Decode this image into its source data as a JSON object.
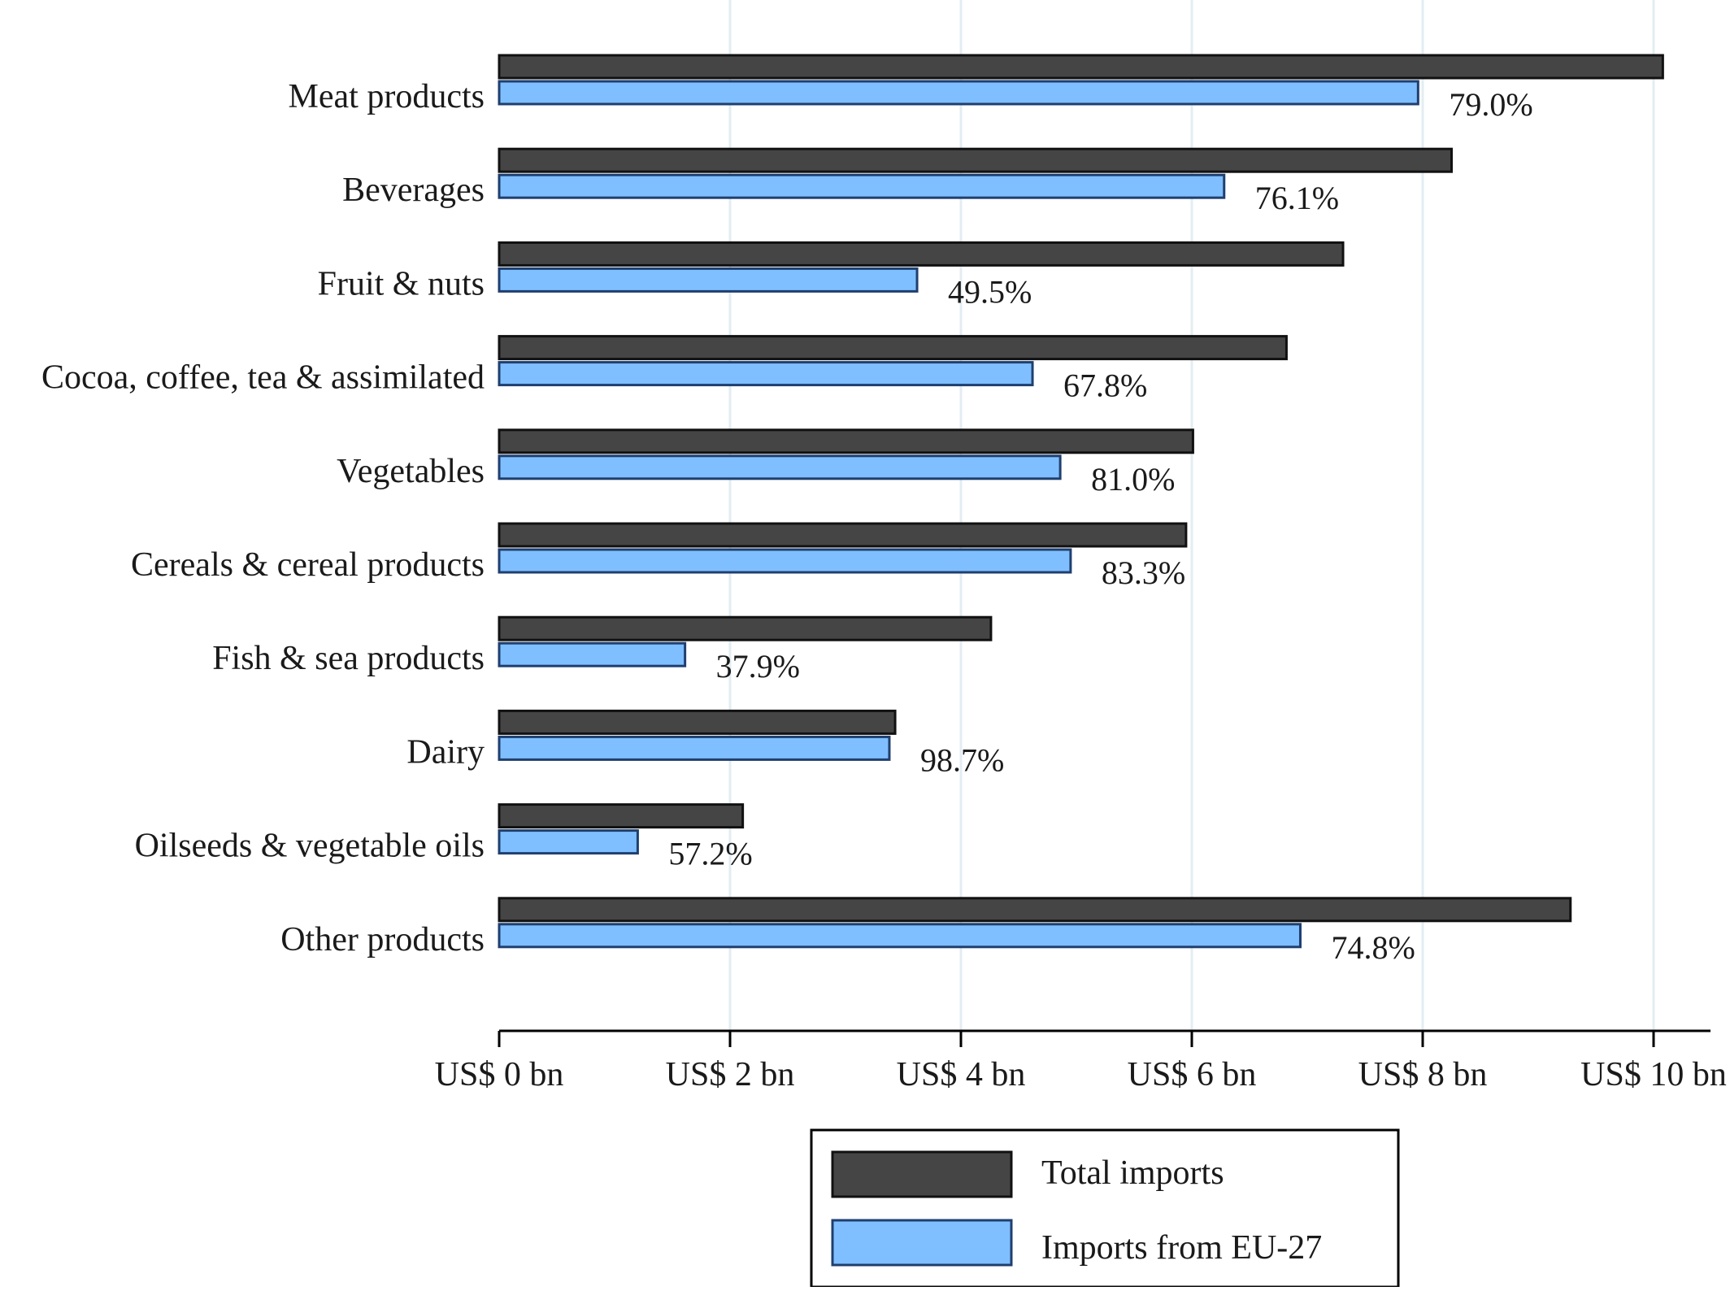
{
  "chart_data": {
    "type": "bar",
    "orientation": "horizontal",
    "title": "",
    "xlabel": "",
    "ylabel": "",
    "xlim": [
      0,
      10
    ],
    "xticks": [
      0,
      2,
      4,
      6,
      8,
      10
    ],
    "xtick_labels": [
      "US$ 0 bn",
      "US$ 2 bn",
      "US$ 4 bn",
      "US$ 6 bn",
      "US$ 8 bn",
      "US$ 10 bn"
    ],
    "grid": "vertical",
    "legend_position": "bottom",
    "categories": [
      "Meat products",
      "Beverages",
      "Fruit & nuts",
      "Cocoa, coffee, tea & assimilated",
      "Vegetables",
      "Cereals & cereal products",
      "Fish & sea products",
      "Dairy",
      "Oilseeds & vegetable oils",
      "Other products"
    ],
    "series": [
      {
        "name": "Total imports",
        "color": "#454545",
        "values": [
          10.08,
          8.25,
          7.31,
          6.82,
          6.01,
          5.95,
          4.26,
          3.43,
          2.11,
          9.28
        ]
      },
      {
        "name": "Imports from EU-27",
        "color": "#7fbfff",
        "values": [
          7.96,
          6.28,
          3.62,
          4.62,
          4.86,
          4.95,
          1.61,
          3.38,
          1.2,
          6.94
        ]
      }
    ],
    "share_labels": [
      "79.0%",
      "76.1%",
      "49.5%",
      "67.8%",
      "81.0%",
      "83.3%",
      "37.9%",
      "98.7%",
      "57.2%",
      "74.8%"
    ]
  },
  "colors": {
    "total": "#454545",
    "eu": "#7fbfff",
    "eu_stroke": "#1f3f6f",
    "grid": "#e3eef2",
    "axis": "#000000"
  }
}
